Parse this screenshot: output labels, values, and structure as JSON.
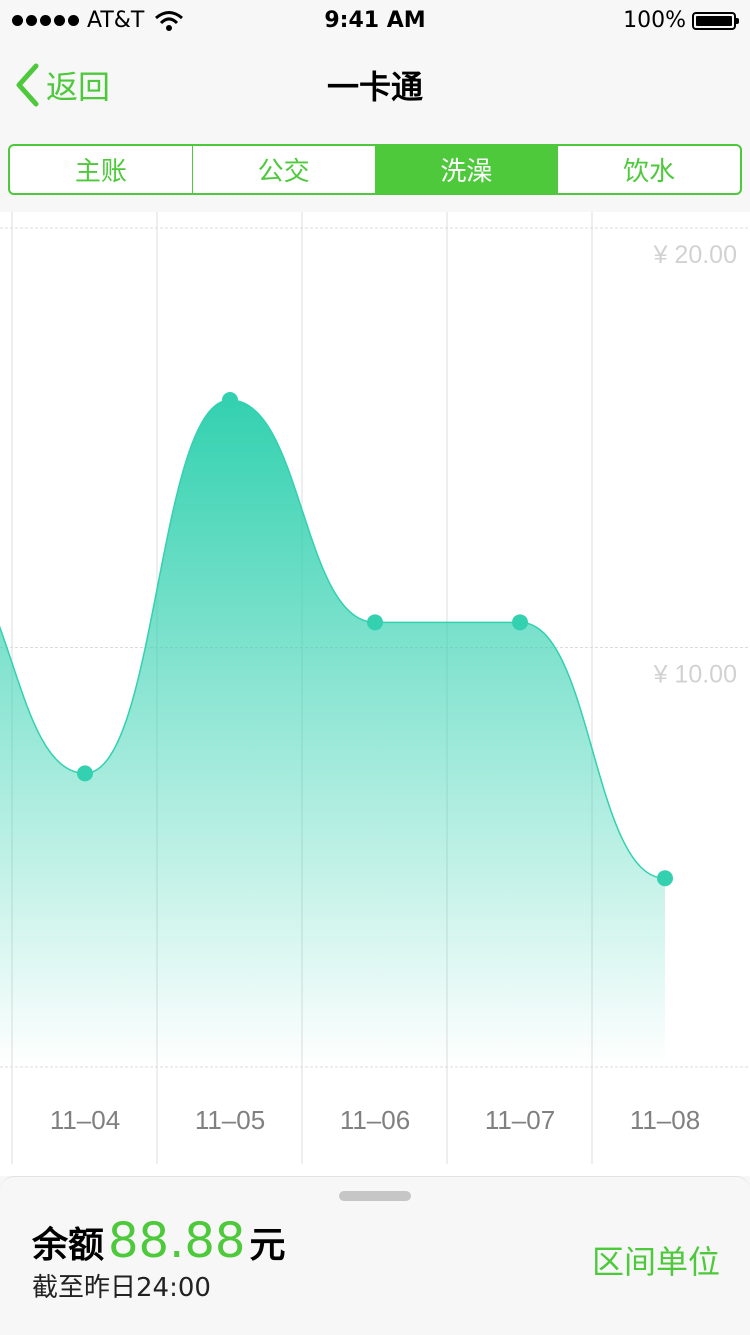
{
  "status_bar": {
    "carrier": "AT&T",
    "time": "9:41 AM",
    "battery": "100%"
  },
  "nav": {
    "back_label": "返回",
    "title": "一卡通"
  },
  "tabs": [
    {
      "label": "主账",
      "active": false
    },
    {
      "label": "公交",
      "active": false
    },
    {
      "label": "洗澡",
      "active": true
    },
    {
      "label": "饮水",
      "active": false
    }
  ],
  "chart_data": {
    "type": "area",
    "categories": [
      "11-04",
      "11-05",
      "11-06",
      "11-07",
      "11-08"
    ],
    "x_tick_labels": [
      "11–04",
      "11–05",
      "11–06",
      "11–07",
      "11–08"
    ],
    "values": [
      7.0,
      15.9,
      10.6,
      10.6,
      4.5
    ],
    "y_tick_labels": [
      "¥ 20.00",
      "¥ 10.00"
    ],
    "ylim": [
      0,
      20
    ],
    "grid": true,
    "line_color": "#33d1b0",
    "fill_color": "#33d1b0"
  },
  "footer": {
    "balance_label": "余额",
    "balance_amount": "88.88",
    "balance_unit": "元",
    "as_of": "截至昨日24:00",
    "range_button": "区间单位"
  }
}
